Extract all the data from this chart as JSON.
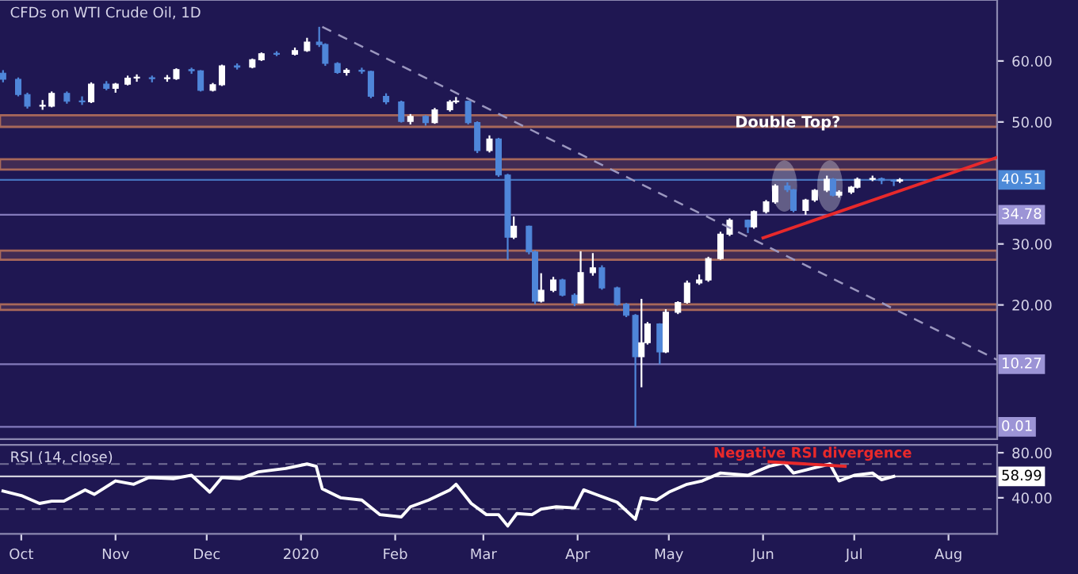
{
  "chart_data": [
    {
      "type": "candlestick",
      "title": "CFDs on WTI Crude Oil, 1D",
      "x": [
        "2019-09-25",
        "2019-09-30",
        "2019-10-03",
        "2019-10-08",
        "2019-10-11",
        "2019-10-16",
        "2019-10-21",
        "2019-10-24",
        "2019-10-29",
        "2019-11-01",
        "2019-11-05",
        "2019-11-08",
        "2019-11-13",
        "2019-11-18",
        "2019-11-21",
        "2019-11-26",
        "2019-11-29",
        "2019-12-03",
        "2019-12-06",
        "2019-12-11",
        "2019-12-16",
        "2019-12-19",
        "2019-12-24",
        "2019-12-30",
        "2020-01-03",
        "2020-01-07",
        "2020-01-09",
        "2020-01-13",
        "2020-01-16",
        "2020-01-21",
        "2020-01-24",
        "2020-01-29",
        "2020-02-03",
        "2020-02-06",
        "2020-02-11",
        "2020-02-14",
        "2020-02-19",
        "2020-02-21",
        "2020-02-25",
        "2020-02-28",
        "2020-03-03",
        "2020-03-06",
        "2020-03-09",
        "2020-03-11",
        "2020-03-16",
        "2020-03-18",
        "2020-03-20",
        "2020-03-24",
        "2020-03-27",
        "2020-03-31",
        "2020-04-02",
        "2020-04-06",
        "2020-04-09",
        "2020-04-14",
        "2020-04-17",
        "2020-04-20",
        "2020-04-22",
        "2020-04-24",
        "2020-04-28",
        "2020-04-30",
        "2020-05-04",
        "2020-05-07",
        "2020-05-11",
        "2020-05-14",
        "2020-05-18",
        "2020-05-21",
        "2020-05-27",
        "2020-05-29",
        "2020-06-02",
        "2020-06-05",
        "2020-06-09",
        "2020-06-11",
        "2020-06-15",
        "2020-06-18",
        "2020-06-22",
        "2020-06-24",
        "2020-06-26",
        "2020-06-30",
        "2020-07-02",
        "2020-07-07",
        "2020-07-10",
        "2020-07-14",
        "2020-07-16"
      ],
      "ohlc": [
        [
          58.0,
          58.5,
          56.5,
          57.0
        ],
        [
          57.0,
          57.3,
          54.2,
          54.5
        ],
        [
          54.5,
          54.8,
          52.2,
          52.6
        ],
        [
          52.6,
          53.6,
          52.0,
          52.6
        ],
        [
          52.6,
          55.0,
          52.4,
          54.7
        ],
        [
          54.7,
          55.0,
          53.0,
          53.4
        ],
        [
          53.4,
          54.2,
          52.8,
          53.3
        ],
        [
          53.3,
          56.5,
          53.1,
          56.2
        ],
        [
          56.2,
          56.7,
          55.2,
          55.5
        ],
        [
          55.5,
          56.4,
          54.8,
          56.2
        ],
        [
          56.2,
          57.6,
          56.0,
          57.2
        ],
        [
          57.2,
          57.8,
          56.6,
          57.2
        ],
        [
          57.2,
          57.6,
          56.5,
          57.1
        ],
        [
          57.1,
          57.7,
          56.6,
          57.1
        ],
        [
          57.1,
          58.8,
          56.9,
          58.6
        ],
        [
          58.6,
          58.9,
          57.9,
          58.4
        ],
        [
          58.4,
          58.5,
          55.0,
          55.2
        ],
        [
          55.2,
          56.4,
          55.0,
          56.1
        ],
        [
          56.1,
          59.4,
          55.9,
          59.2
        ],
        [
          59.2,
          59.6,
          58.6,
          59.0
        ],
        [
          59.0,
          60.4,
          58.8,
          60.2
        ],
        [
          60.2,
          61.4,
          60.0,
          61.2
        ],
        [
          61.2,
          61.6,
          60.8,
          61.1
        ],
        [
          61.1,
          62.2,
          60.9,
          61.7
        ],
        [
          61.7,
          63.8,
          61.5,
          63.1
        ],
        [
          63.1,
          65.6,
          62.3,
          62.7
        ],
        [
          62.7,
          62.9,
          59.2,
          59.6
        ],
        [
          59.6,
          59.8,
          57.9,
          58.1
        ],
        [
          58.1,
          58.8,
          57.6,
          58.5
        ],
        [
          58.5,
          58.9,
          57.9,
          58.3
        ],
        [
          58.3,
          58.4,
          53.9,
          54.2
        ],
        [
          54.2,
          54.7,
          52.9,
          53.3
        ],
        [
          53.3,
          53.5,
          49.9,
          50.1
        ],
        [
          50.1,
          51.3,
          49.6,
          50.9
        ],
        [
          50.9,
          51.1,
          49.4,
          49.9
        ],
        [
          49.9,
          52.3,
          49.7,
          52.0
        ],
        [
          52.0,
          53.6,
          51.7,
          53.3
        ],
        [
          53.3,
          54.1,
          53.0,
          53.4
        ],
        [
          53.4,
          53.5,
          49.6,
          49.9
        ],
        [
          49.9,
          50.1,
          44.9,
          45.3
        ],
        [
          45.3,
          47.8,
          45.0,
          47.2
        ],
        [
          47.2,
          47.4,
          41.0,
          41.3
        ],
        [
          41.3,
          41.5,
          27.4,
          31.1
        ],
        [
          31.1,
          34.5,
          30.8,
          32.9
        ],
        [
          32.9,
          33.0,
          28.3,
          28.7
        ],
        [
          28.7,
          28.9,
          20.1,
          20.6
        ],
        [
          20.6,
          25.2,
          20.4,
          22.4
        ],
        [
          22.4,
          24.6,
          22.1,
          24.1
        ],
        [
          24.1,
          24.3,
          21.4,
          21.6
        ],
        [
          21.6,
          21.9,
          19.8,
          20.3
        ],
        [
          20.3,
          28.8,
          20.2,
          25.3
        ],
        [
          25.3,
          28.5,
          24.8,
          26.1
        ],
        [
          26.1,
          26.5,
          22.5,
          22.8
        ],
        [
          22.8,
          23.0,
          19.9,
          20.1
        ],
        [
          20.1,
          20.3,
          18.0,
          18.3
        ],
        [
          18.3,
          18.5,
          0.01,
          11.5
        ],
        [
          11.5,
          21.0,
          6.5,
          13.8
        ],
        [
          13.8,
          17.2,
          13.5,
          16.9
        ],
        [
          16.9,
          17.0,
          10.27,
          12.3
        ],
        [
          12.3,
          19.3,
          12.1,
          18.8
        ],
        [
          18.8,
          20.6,
          18.5,
          20.4
        ],
        [
          20.4,
          24.0,
          20.2,
          23.6
        ],
        [
          23.6,
          25.0,
          23.3,
          24.1
        ],
        [
          24.1,
          27.9,
          23.8,
          27.6
        ],
        [
          27.6,
          32.0,
          27.4,
          31.6
        ],
        [
          31.6,
          34.2,
          31.3,
          33.9
        ],
        [
          33.9,
          34.0,
          31.8,
          32.8
        ],
        [
          32.8,
          35.5,
          32.5,
          35.3
        ],
        [
          35.3,
          37.2,
          35.0,
          36.9
        ],
        [
          36.9,
          39.8,
          36.6,
          39.5
        ],
        [
          39.5,
          40.1,
          38.5,
          38.9
        ],
        [
          38.9,
          39.0,
          35.2,
          35.5
        ],
        [
          35.5,
          37.4,
          34.78,
          37.2
        ],
        [
          37.2,
          39.0,
          36.9,
          38.8
        ],
        [
          38.8,
          41.2,
          38.5,
          40.6
        ],
        [
          40.6,
          40.8,
          37.8,
          38.0
        ],
        [
          38.0,
          38.8,
          37.6,
          38.5
        ],
        [
          38.5,
          39.5,
          38.2,
          39.3
        ],
        [
          39.3,
          40.9,
          39.1,
          40.6
        ],
        [
          40.6,
          41.2,
          40.3,
          40.7
        ],
        [
          40.7,
          40.9,
          39.8,
          40.4
        ],
        [
          40.4,
          40.6,
          39.5,
          40.3
        ],
        [
          40.3,
          40.8,
          40.0,
          40.51
        ]
      ],
      "series": [
        {
          "type": "line",
          "color": "#9b97bf",
          "line_style": "dashed",
          "x": [
            "2020-01-08",
            "2020-08-17"
          ],
          "values": [
            65.6,
            11.0
          ]
        },
        {
          "type": "line",
          "color": "#e8292b",
          "line_style": "solid",
          "x": [
            "2020-06-01",
            "2020-08-17"
          ],
          "values": [
            31.0,
            44.2
          ]
        }
      ],
      "bands": [
        {
          "axis": "y",
          "from": 49.2,
          "to": 51.1,
          "color": "#a8685a"
        },
        {
          "axis": "y",
          "from": 42.2,
          "to": 43.9,
          "color": "#a8685a"
        },
        {
          "axis": "y",
          "from": 27.4,
          "to": 28.9,
          "color": "#a8685a"
        },
        {
          "axis": "y",
          "from": 19.2,
          "to": 20.1,
          "color": "#a8685a"
        }
      ],
      "ref_lines": [
        {
          "axis": "y",
          "value": 40.51,
          "label": "40.51",
          "color": "#4d8ad8"
        },
        {
          "axis": "y",
          "value": 34.78,
          "label": "34.78",
          "color": "#9c94d6"
        },
        {
          "axis": "y",
          "value": 10.27,
          "label": "10.27",
          "color": "#9c94d6"
        },
        {
          "axis": "y",
          "value": 0.01,
          "label": "0.01",
          "color": "#9c94d6"
        }
      ],
      "annotations": [
        "Double Top?"
      ],
      "xlim": [
        "2019-09-24",
        "2020-08-17"
      ],
      "ylim": [
        -2,
        70
      ],
      "yticks": [
        {
          "value": 20,
          "label": "20.00"
        },
        {
          "value": 30,
          "label": "30.00"
        },
        {
          "value": 50,
          "label": "50.00"
        },
        {
          "value": 60,
          "label": "60.00"
        }
      ],
      "tick_labels": "y"
    },
    {
      "type": "line",
      "title": "RSI (14, close)",
      "x": [
        "2019-09-25",
        "2019-10-01",
        "2019-10-07",
        "2019-10-11",
        "2019-10-15",
        "2019-10-22",
        "2019-10-25",
        "2019-11-01",
        "2019-11-07",
        "2019-11-12",
        "2019-11-20",
        "2019-11-26",
        "2019-12-02",
        "2019-12-06",
        "2019-12-12",
        "2019-12-18",
        "2019-12-27",
        "2020-01-03",
        "2020-01-06",
        "2020-01-08",
        "2020-01-14",
        "2020-01-21",
        "2020-01-27",
        "2020-02-03",
        "2020-02-06",
        "2020-02-12",
        "2020-02-19",
        "2020-02-21",
        "2020-02-26",
        "2020-03-02",
        "2020-03-06",
        "2020-03-09",
        "2020-03-12",
        "2020-03-17",
        "2020-03-20",
        "2020-03-25",
        "2020-03-31",
        "2020-04-03",
        "2020-04-08",
        "2020-04-14",
        "2020-04-20",
        "2020-04-22",
        "2020-04-27",
        "2020-05-01",
        "2020-05-07",
        "2020-05-12",
        "2020-05-18",
        "2020-05-27",
        "2020-06-03",
        "2020-06-08",
        "2020-06-11",
        "2020-06-17",
        "2020-06-23",
        "2020-06-26",
        "2020-07-01",
        "2020-07-07",
        "2020-07-10",
        "2020-07-14"
      ],
      "series": [
        {
          "color": "#ffffff",
          "values": [
            46,
            42,
            35,
            37,
            37,
            47,
            43,
            55,
            52,
            58,
            57,
            60,
            45,
            58,
            57,
            63,
            66,
            70,
            68,
            48,
            40,
            38,
            25,
            23,
            32,
            38,
            47,
            52,
            35,
            25,
            25,
            15,
            26,
            25,
            30,
            32,
            31,
            47,
            42,
            36,
            21,
            40,
            38,
            45,
            52,
            55,
            62,
            60,
            68,
            71,
            62,
            66,
            70,
            55,
            60,
            62,
            56,
            59
          ]
        },
        {
          "type": "line",
          "color": "#e8292b",
          "x": [
            "2020-06-03",
            "2020-06-28"
          ],
          "values": [
            72,
            68
          ]
        }
      ],
      "ref_lines": [
        {
          "axis": "y",
          "value": 70,
          "color": "#8a86a8",
          "line_style": "dashed"
        },
        {
          "axis": "y",
          "value": 30,
          "color": "#8a86a8",
          "line_style": "dashed"
        },
        {
          "axis": "y",
          "value": 58.99,
          "label": "58.99",
          "color": "#ffffff"
        }
      ],
      "annotations": [
        "Negative RSI divergence"
      ],
      "xlim": [
        "2019-09-24",
        "2020-08-17"
      ],
      "ylim": [
        8,
        87
      ],
      "yticks": [
        {
          "value": 40,
          "label": "40.00"
        },
        {
          "value": 80,
          "label": "80.00"
        }
      ],
      "xticks": [
        {
          "value": "2019-10-01",
          "label": "Oct"
        },
        {
          "value": "2019-11-01",
          "label": "Nov"
        },
        {
          "value": "2019-12-01",
          "label": "Dec"
        },
        {
          "value": "2020-01-01",
          "label": "2020"
        },
        {
          "value": "2020-02-01",
          "label": "Feb"
        },
        {
          "value": "2020-03-01",
          "label": "Mar"
        },
        {
          "value": "2020-04-01",
          "label": "Apr"
        },
        {
          "value": "2020-05-01",
          "label": "May"
        },
        {
          "value": "2020-06-01",
          "label": "Jun"
        },
        {
          "value": "2020-07-01",
          "label": "Jul"
        },
        {
          "value": "2020-08-01",
          "label": "Aug"
        }
      ]
    }
  ]
}
